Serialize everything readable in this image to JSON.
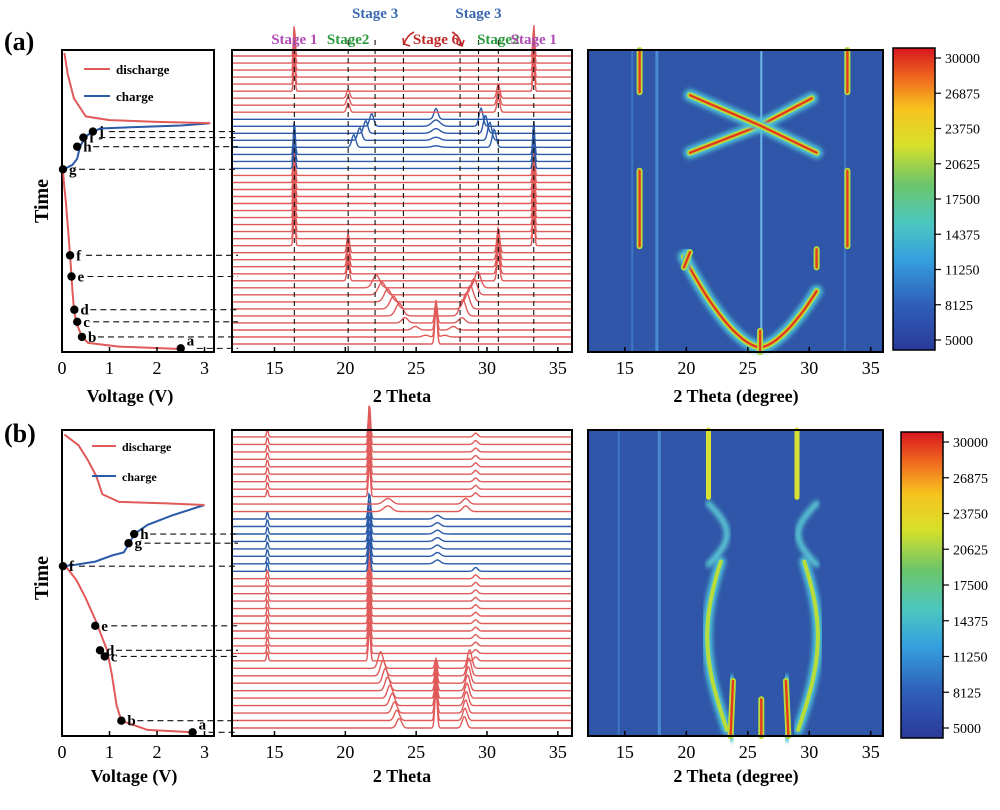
{
  "panels": [
    {
      "label": "(a)",
      "voltage": {
        "ylabel": "Time",
        "xlabel": "Voltage (V)",
        "xticks": [
          0,
          1,
          2,
          3
        ],
        "xlim": [
          0,
          3.2
        ],
        "legend": [
          {
            "name": "discharge",
            "color": "#e05a5a"
          },
          {
            "name": "charge",
            "color": "#2a5aa8"
          }
        ],
        "discharge_curve_1": [
          [
            2.5,
            0.01
          ],
          [
            1.2,
            0.018
          ],
          [
            0.55,
            0.03
          ],
          [
            0.42,
            0.05
          ],
          [
            0.32,
            0.09
          ],
          [
            0.26,
            0.13
          ],
          [
            0.22,
            0.2
          ],
          [
            0.18,
            0.3
          ],
          [
            0.13,
            0.4
          ],
          [
            0.08,
            0.5
          ],
          [
            0.04,
            0.56
          ],
          [
            0.02,
            0.605
          ]
        ],
        "charge_curve": [
          [
            0.02,
            0.605
          ],
          [
            0.1,
            0.61
          ],
          [
            0.22,
            0.62
          ],
          [
            0.32,
            0.64
          ],
          [
            0.38,
            0.68
          ],
          [
            0.45,
            0.7
          ],
          [
            0.55,
            0.72
          ],
          [
            0.8,
            0.74
          ],
          [
            1.6,
            0.745
          ],
          [
            2.5,
            0.75
          ],
          [
            3.0,
            0.756
          ],
          [
            3.12,
            0.758
          ]
        ],
        "discharge_curve_2": [
          [
            3.12,
            0.758
          ],
          [
            2.0,
            0.762
          ],
          [
            1.0,
            0.768
          ],
          [
            0.5,
            0.78
          ],
          [
            0.25,
            0.84
          ],
          [
            0.12,
            0.92
          ],
          [
            0.05,
            0.99
          ]
        ],
        "points": [
          {
            "label": "a",
            "v": 2.5,
            "t": 0.012
          },
          {
            "label": "b",
            "v": 0.42,
            "t": 0.05
          },
          {
            "label": "c",
            "v": 0.32,
            "t": 0.1
          },
          {
            "label": "d",
            "v": 0.26,
            "t": 0.14
          },
          {
            "label": "e",
            "v": 0.2,
            "t": 0.25
          },
          {
            "label": "f",
            "v": 0.17,
            "t": 0.32
          },
          {
            "label": "g",
            "v": 0.02,
            "t": 0.605
          },
          {
            "label": "h",
            "v": 0.32,
            "t": 0.68
          },
          {
            "label": "i",
            "v": 0.45,
            "t": 0.71
          },
          {
            "label": "j",
            "v": 0.65,
            "t": 0.73
          }
        ]
      },
      "xrd": {
        "xlabel": "2 Theta",
        "xticks": [
          15,
          20,
          25,
          30,
          35
        ],
        "xlim": [
          12,
          36
        ],
        "stage_labels": [
          {
            "text": "Stage 1",
            "x": 16.4,
            "color": "#b04cb4",
            "row": 0
          },
          {
            "text": "Stage2",
            "x": 20.2,
            "color": "#2c9a3c",
            "row": 0
          },
          {
            "text": "Stage 3",
            "x": 22.1,
            "color": "#3a68b0",
            "row": 1
          },
          {
            "text": "Stage 6",
            "x": 26.4,
            "color": "#c02828",
            "row": 0
          },
          {
            "text": "Stage 3",
            "x": 29.4,
            "color": "#3a68b0",
            "row": 1
          },
          {
            "text": "Stage2",
            "x": 30.8,
            "color": "#2c9a3c",
            "row": 0
          },
          {
            "text": "Stage 1",
            "x": 33.3,
            "color": "#b04cb4",
            "row": 0
          }
        ],
        "dashed_lines": [
          16.4,
          20.2,
          22.1,
          24.1,
          28.1,
          29.4,
          30.8,
          33.3
        ]
      },
      "heatmap": {
        "xlabel": "2 Theta (degree)",
        "xticks": [
          15,
          20,
          25,
          30,
          35
        ],
        "xlim": [
          12,
          36
        ],
        "colorbar_ticks": [
          30000,
          26875,
          23750,
          20625,
          17500,
          14375,
          11250,
          8125,
          5000
        ]
      }
    },
    {
      "label": "(b)",
      "voltage": {
        "ylabel": "Time",
        "xlabel": "Voltage (V)",
        "xticks": [
          0,
          1,
          2,
          3
        ],
        "xlim": [
          0,
          3.2
        ],
        "legend": [
          {
            "name": "discharge",
            "color": "#e05a5a"
          },
          {
            "name": "charge",
            "color": "#2a5aa8"
          }
        ],
        "discharge_curve_1": [
          [
            2.75,
            0.012
          ],
          [
            1.8,
            0.02
          ],
          [
            1.25,
            0.05
          ],
          [
            1.15,
            0.1
          ],
          [
            1.05,
            0.2
          ],
          [
            0.95,
            0.28
          ],
          [
            0.85,
            0.32
          ],
          [
            0.7,
            0.38
          ],
          [
            0.5,
            0.45
          ],
          [
            0.3,
            0.51
          ],
          [
            0.1,
            0.55
          ],
          [
            0.02,
            0.555
          ]
        ],
        "charge_curve": [
          [
            0.02,
            0.555
          ],
          [
            0.3,
            0.56
          ],
          [
            0.7,
            0.57
          ],
          [
            1.05,
            0.59
          ],
          [
            1.3,
            0.6
          ],
          [
            1.42,
            0.63
          ],
          [
            1.52,
            0.66
          ],
          [
            1.8,
            0.69
          ],
          [
            2.3,
            0.72
          ],
          [
            2.8,
            0.745
          ],
          [
            3.0,
            0.755
          ]
        ],
        "discharge_curve_2": [
          [
            3.0,
            0.755
          ],
          [
            2.2,
            0.76
          ],
          [
            1.2,
            0.765
          ],
          [
            0.85,
            0.79
          ],
          [
            0.72,
            0.85
          ],
          [
            0.55,
            0.9
          ],
          [
            0.35,
            0.95
          ],
          [
            0.05,
            0.985
          ]
        ],
        "points": [
          {
            "label": "a",
            "v": 2.75,
            "t": 0.012
          },
          {
            "label": "b",
            "v": 1.25,
            "t": 0.05
          },
          {
            "label": "c",
            "v": 0.9,
            "t": 0.26
          },
          {
            "label": "d",
            "v": 0.8,
            "t": 0.28
          },
          {
            "label": "e",
            "v": 0.7,
            "t": 0.36
          },
          {
            "label": "f",
            "v": 0.02,
            "t": 0.555
          },
          {
            "label": "g",
            "v": 1.4,
            "t": 0.63
          },
          {
            "label": "h",
            "v": 1.52,
            "t": 0.66
          }
        ]
      },
      "xrd": {
        "xlabel": "2 Theta",
        "xticks": [
          15,
          20,
          25,
          30,
          35
        ],
        "xlim": [
          12,
          36
        ]
      },
      "heatmap": {
        "xlabel": "2 Theta (degree)",
        "xticks": [
          15,
          20,
          25,
          30,
          35
        ],
        "xlim": [
          12,
          36
        ],
        "colorbar_ticks": [
          30000,
          26875,
          23750,
          20625,
          17500,
          14375,
          11250,
          8125,
          5000
        ]
      }
    }
  ],
  "chart_data": [
    {
      "type": "line",
      "xlabel": "Voltage (V)",
      "ylabel": "Time",
      "xlim": [
        0,
        3.2
      ],
      "series": [
        {
          "name": "discharge"
        },
        {
          "name": "charge"
        }
      ],
      "marked_points": [
        "a",
        "b",
        "c",
        "d",
        "e",
        "f",
        "g",
        "h",
        "i",
        "j"
      ]
    },
    {
      "type": "line",
      "xlabel": "2 Theta",
      "xlim": [
        12,
        36
      ],
      "peak_positions": [
        16.4,
        20.2,
        22.1,
        24.1,
        26.4,
        28.1,
        29.4,
        30.8,
        33.3
      ]
    },
    {
      "type": "heatmap",
      "xlabel": "2 Theta (degree)",
      "xlim": [
        12,
        36
      ],
      "colorbar_range": [
        5000,
        30000
      ]
    },
    {
      "type": "line",
      "xlabel": "Voltage (V)",
      "ylabel": "Time",
      "xlim": [
        0,
        3.2
      ],
      "series": [
        {
          "name": "discharge"
        },
        {
          "name": "charge"
        }
      ],
      "marked_points": [
        "a",
        "b",
        "c",
        "d",
        "e",
        "f",
        "g",
        "h"
      ]
    },
    {
      "type": "line",
      "xlabel": "2 Theta",
      "xlim": [
        12,
        36
      ],
      "peak_positions": [
        14.5,
        21.7,
        23.8,
        26.4,
        28.4
      ]
    },
    {
      "type": "heatmap",
      "xlabel": "2 Theta (degree)",
      "xlim": [
        12,
        36
      ],
      "colorbar_range": [
        5000,
        30000
      ]
    }
  ]
}
